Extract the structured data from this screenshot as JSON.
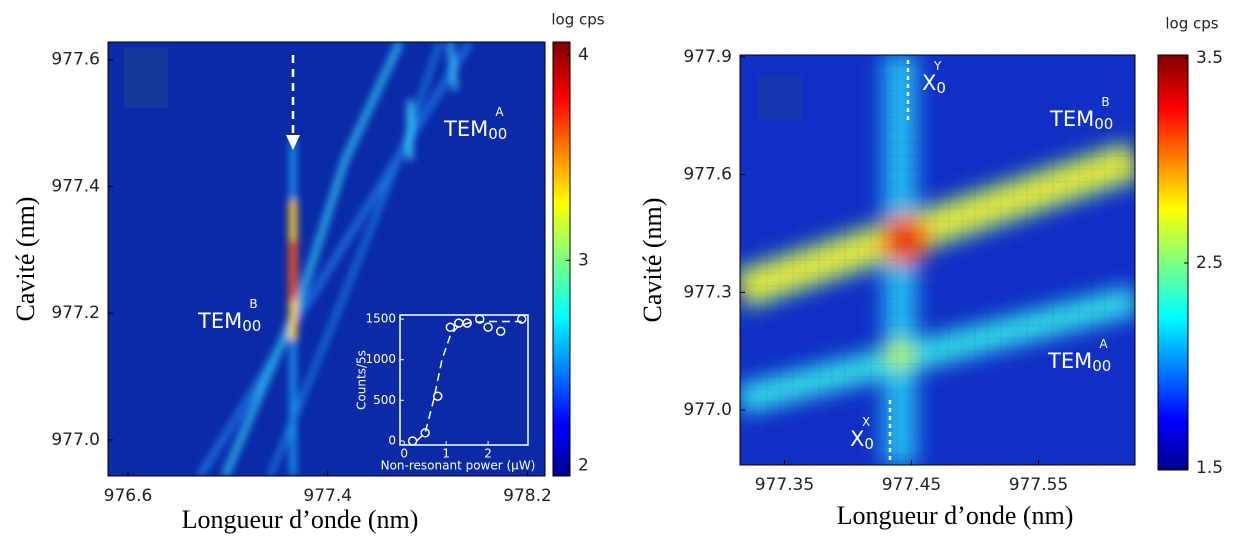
{
  "chart_data": [
    {
      "type": "heatmap",
      "xlabel": "Longueur d’onde (nm)",
      "ylabel": "Cavité (nm)",
      "xlim": [
        976.52,
        978.27
      ],
      "xticks": [
        976.6,
        977.4,
        978.2
      ],
      "ylim": [
        976.943,
        977.628
      ],
      "yticks": [
        {
          "value": 977,
          "label": "977.0"
        },
        977.2,
        977.4,
        977.6
      ],
      "colorbar": {
        "label": "log cps",
        "lim": [
          1.95,
          4.063
        ],
        "ticks": [
          2,
          3,
          4
        ]
      },
      "annotations": [
        {
          "text": "TEM",
          "sub": "00",
          "sup": "B"
        },
        {
          "text": "TEM",
          "sub": "00",
          "sup": "A"
        }
      ]
    },
    {
      "type": "scatter",
      "xlabel": "Non-resonant power (μW)",
      "ylabel": "Counts/5s",
      "xlim": [
        -0.1,
        2.95
      ],
      "xticks": [
        0,
        1,
        2
      ],
      "ylim": [
        -50,
        1550
      ],
      "yticks": [
        0,
        500,
        1000,
        1500
      ],
      "x": [
        0.2,
        0.5,
        0.8,
        1.1,
        1.3,
        1.5,
        1.8,
        2.0,
        2.3,
        2.8
      ],
      "values": [
        0,
        100,
        550,
        1400,
        1450,
        1450,
        1500,
        1400,
        1350,
        1500
      ],
      "fit": {
        "x": [
          0.3,
          0.5,
          0.7,
          0.9,
          1.1,
          1.3,
          1.6,
          2.0,
          2.5,
          2.8
        ],
        "values": [
          0,
          100,
          500,
          1000,
          1300,
          1420,
          1460,
          1470,
          1470,
          1470
        ]
      }
    },
    {
      "type": "heatmap",
      "xlabel": "Longueur d’onde (nm)",
      "ylabel": "Cavité (nm)",
      "xlim": [
        977.315,
        977.626
      ],
      "xticks": [
        977.35,
        977.45,
        977.55
      ],
      "ylim": [
        976.86,
        977.905
      ],
      "yticks": [
        {
          "value": 977,
          "label": "977.0"
        },
        977.3,
        977.6,
        977.9
      ],
      "colorbar": {
        "label": "log cps",
        "lim": [
          1.49,
          3.515
        ],
        "ticks": [
          1.5,
          2.5,
          3.5
        ]
      },
      "annotations": [
        {
          "text": "X",
          "sub": "0",
          "sup": "Y"
        },
        {
          "text": "TEM",
          "sub": "00",
          "sup": "B"
        },
        {
          "text": "TEM",
          "sub": "00",
          "sup": "A"
        },
        {
          "text": "X",
          "sub": "0",
          "sup": "X"
        }
      ]
    }
  ]
}
